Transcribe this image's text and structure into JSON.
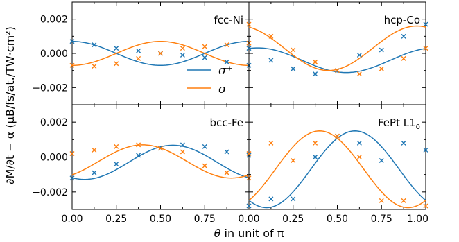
{
  "colors": {
    "sigma_plus": "#1f77b4",
    "sigma_minus": "#ff7f0e"
  },
  "axes": {
    "xlabel_theta": "θ",
    "xlabel_rest": " in unit of π",
    "ylabel": "∂M/∂t − α (μB/fs/at./TW·cm²)",
    "x_ticks": [
      "0.00",
      "0.25",
      "0.50",
      "0.75",
      "1.00"
    ],
    "y_ticks": [
      "0.002",
      "0.000",
      "−0.002"
    ]
  },
  "legend": {
    "sigma_plus": "σ⁺",
    "sigma_minus": "σ⁻",
    "placement": "center"
  },
  "chart_data": [
    {
      "type": "line",
      "title": "fcc-Ni",
      "xlim": [
        0,
        1
      ],
      "ylim": [
        -0.003,
        0.003
      ],
      "series": [
        {
          "name": "σ⁺",
          "curve": "0.0007*cos(2πθ)",
          "points_x": [
            0,
            0.125,
            0.25,
            0.375,
            0.5,
            0.625,
            0.75,
            0.875,
            1.0
          ],
          "points_y": [
            0.0007,
            0.0005,
            0.0003,
            0.00015,
            0.0,
            -0.0001,
            -0.00025,
            -0.0005,
            -0.0007
          ]
        },
        {
          "name": "σ⁻",
          "curve": "-0.0007*cos(2πθ)",
          "points_x": [
            0,
            0.125,
            0.25,
            0.375,
            0.5,
            0.625,
            0.75,
            0.875,
            1.0
          ],
          "points_y": [
            -0.0007,
            -0.00075,
            -0.0006,
            -0.0003,
            0.0,
            0.0003,
            0.0004,
            0.0005,
            0.0006
          ]
        }
      ]
    },
    {
      "type": "line",
      "title": "hcp-Co",
      "xlim": [
        0,
        1
      ],
      "ylim": [
        -0.003,
        0.003
      ],
      "series": [
        {
          "name": "σ⁺",
          "curve": "-0.0004+0.00072*cos(2π(θ-0.05))",
          "points_x": [
            0,
            0.125,
            0.25,
            0.375,
            0.5,
            0.625,
            0.75,
            0.875,
            1.0
          ],
          "points_y": [
            0.0003,
            -0.0004,
            -0.0009,
            -0.0012,
            -0.001,
            -0.0001,
            0.0002,
            0.001,
            0.0017
          ]
        },
        {
          "name": "σ⁻",
          "curve": "0.0003+0.0013*cos(2π(θ+0.05))",
          "points_x": [
            0,
            0.125,
            0.25,
            0.375,
            0.5,
            0.625,
            0.75,
            0.875,
            1.0
          ],
          "points_y": [
            0.0017,
            0.001,
            0.0002,
            -0.0005,
            -0.001,
            -0.0012,
            -0.0009,
            -0.0003,
            0.0003
          ]
        }
      ]
    },
    {
      "type": "line",
      "title": "bcc-Fe",
      "xlim": [
        0,
        1
      ],
      "ylim": [
        -0.003,
        0.003
      ],
      "series": [
        {
          "name": "σ⁺",
          "curve": "-0.0003-0.00098*cos(2π(θ-0.07))",
          "points_x": [
            0,
            0.125,
            0.25,
            0.375,
            0.5,
            0.625,
            0.75,
            0.875,
            1.0
          ],
          "points_y": [
            -0.0012,
            -0.0009,
            -0.0004,
            0.0001,
            0.0005,
            0.0007,
            0.0006,
            0.0003,
            0.0001
          ]
        },
        {
          "name": "σ⁻",
          "curve": "-0.00025+0.00095*cos(2π(θ-0.4))",
          "points_x": [
            0,
            0.125,
            0.25,
            0.375,
            0.5,
            0.625,
            0.75,
            0.875,
            1.0
          ],
          "points_y": [
            0.0002,
            0.0004,
            0.0006,
            0.0007,
            0.0005,
            0.0003,
            -0.0005,
            -0.0009,
            -0.0012
          ]
        }
      ]
    },
    {
      "type": "line",
      "title": "FePt L1",
      "title_sub": "0",
      "xlim": [
        0,
        1
      ],
      "ylim": [
        -0.003,
        0.003
      ],
      "series": [
        {
          "name": "σ⁺",
          "curve": "-0.0007-0.0022*cos(2π(θ-0.1))",
          "points_x": [
            0,
            0.125,
            0.25,
            0.375,
            0.5,
            0.625,
            0.75,
            0.875,
            1.0
          ],
          "points_y": [
            -0.0028,
            -0.0024,
            -0.0024,
            0.0,
            0.0012,
            0.0008,
            -0.0002,
            0.0008,
            0.0004
          ]
        },
        {
          "name": "σ⁻",
          "curve": "-0.0007+0.0022*cos(2π(θ-0.4))",
          "points_x": [
            0,
            0.125,
            0.25,
            0.375,
            0.5,
            0.625,
            0.75,
            0.875,
            1.0
          ],
          "points_y": [
            0.0002,
            0.0008,
            -0.0002,
            0.0008,
            0.0012,
            0.0,
            -0.0025,
            -0.0025,
            -0.0028
          ]
        }
      ]
    }
  ]
}
